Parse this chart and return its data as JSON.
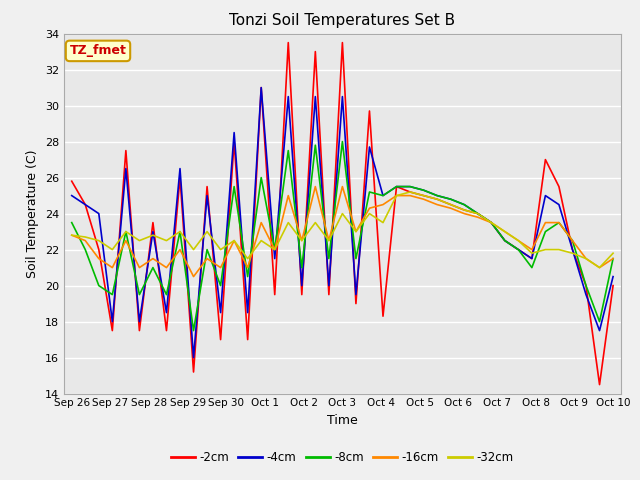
{
  "title": "Tonzi Soil Temperatures Set B",
  "xlabel": "Time",
  "ylabel": "Soil Temperature (C)",
  "ylim": [
    14,
    34
  ],
  "yticks": [
    14,
    16,
    18,
    20,
    22,
    24,
    26,
    28,
    30,
    32,
    34
  ],
  "x_labels": [
    "Sep 26",
    "Sep 27",
    "Sep 28",
    "Sep 29",
    "Sep 30",
    "Oct 1",
    "Oct 2",
    "Oct 3",
    "Oct 4",
    "Oct 5",
    "Oct 6",
    "Oct 7",
    "Oct 8",
    "Oct 9",
    "Oct 10"
  ],
  "annotation_label": "TZ_fmet",
  "annotation_color": "#cc0000",
  "annotation_bg": "#ffffcc",
  "annotation_border": "#cc9900",
  "line_colors": {
    "-2cm": "#ff0000",
    "-4cm": "#0000cc",
    "-8cm": "#00bb00",
    "-16cm": "#ff8800",
    "-32cm": "#cccc00"
  },
  "legend_labels": [
    "-2cm",
    "-4cm",
    "-8cm",
    "-16cm",
    "-32cm"
  ],
  "fig_facecolor": "#f0f0f0",
  "axes_facecolor": "#e8e8e8",
  "grid_color": "#ffffff",
  "data": {
    "-2cm": [
      25.8,
      24.5,
      22.0,
      17.5,
      27.5,
      17.5,
      23.5,
      17.5,
      26.0,
      15.2,
      25.5,
      17.0,
      28.0,
      17.0,
      31.0,
      19.5,
      33.5,
      19.5,
      33.0,
      19.5,
      33.5,
      19.0,
      29.7,
      18.3,
      25.5,
      25.2,
      25.0,
      24.8,
      24.5,
      24.2,
      24.0,
      23.5,
      22.5,
      22.0,
      21.5,
      27.0,
      25.5,
      22.0,
      20.0,
      14.5,
      20.0
    ],
    "-4cm": [
      25.0,
      24.5,
      24.0,
      18.0,
      26.5,
      18.0,
      23.0,
      18.5,
      26.5,
      16.0,
      25.0,
      18.5,
      28.5,
      18.5,
      31.0,
      21.5,
      30.5,
      20.0,
      30.5,
      20.0,
      30.5,
      19.5,
      27.7,
      25.0,
      25.5,
      25.5,
      25.3,
      25.0,
      24.8,
      24.5,
      24.0,
      23.5,
      22.5,
      22.0,
      21.5,
      25.0,
      24.5,
      22.0,
      19.5,
      17.5,
      20.5
    ],
    "-8cm": [
      23.5,
      22.0,
      20.0,
      19.5,
      23.0,
      19.5,
      21.0,
      19.5,
      23.0,
      17.5,
      22.0,
      20.0,
      25.5,
      20.5,
      26.0,
      22.0,
      27.5,
      21.0,
      27.8,
      21.5,
      28.0,
      21.5,
      25.2,
      25.0,
      25.5,
      25.5,
      25.3,
      25.0,
      24.8,
      24.5,
      24.0,
      23.5,
      22.5,
      22.0,
      21.0,
      23.0,
      23.5,
      22.5,
      20.0,
      18.0,
      21.5
    ],
    "-16cm": [
      22.8,
      22.5,
      21.5,
      21.0,
      22.5,
      21.0,
      21.5,
      21.0,
      22.0,
      20.5,
      21.5,
      21.0,
      22.5,
      21.0,
      23.5,
      22.0,
      25.0,
      22.5,
      25.5,
      22.5,
      25.5,
      23.0,
      24.3,
      24.5,
      25.0,
      25.0,
      24.8,
      24.5,
      24.3,
      24.0,
      23.8,
      23.5,
      23.0,
      22.5,
      22.0,
      23.5,
      23.5,
      22.5,
      21.5,
      21.0,
      21.5
    ],
    "-32cm": [
      22.8,
      22.7,
      22.5,
      22.0,
      23.0,
      22.5,
      22.8,
      22.5,
      23.0,
      22.0,
      23.0,
      22.0,
      22.5,
      21.5,
      22.5,
      22.0,
      23.5,
      22.5,
      23.5,
      22.5,
      24.0,
      23.0,
      24.0,
      23.5,
      25.0,
      25.2,
      25.0,
      24.8,
      24.5,
      24.2,
      24.0,
      23.5,
      23.0,
      22.5,
      21.8,
      22.0,
      22.0,
      21.8,
      21.5,
      21.0,
      21.8
    ]
  }
}
